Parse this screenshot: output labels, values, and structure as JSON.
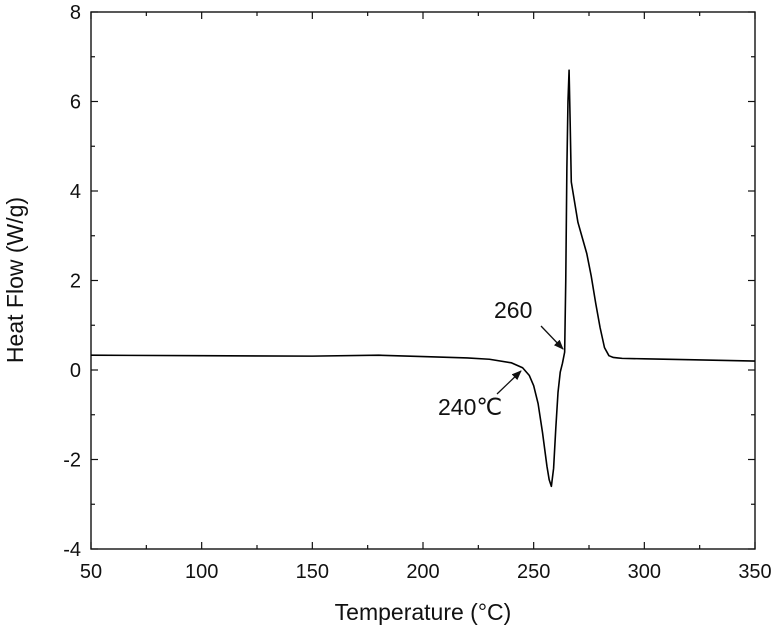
{
  "chart_data": {
    "type": "line",
    "title": "",
    "xlabel": "Temperature (°C)",
    "ylabel": "Heat Flow (W/g)",
    "xlim": [
      50,
      350
    ],
    "ylim": [
      -4,
      8
    ],
    "xticks": [
      50,
      100,
      150,
      200,
      250,
      300,
      350
    ],
    "xtick_labels": [
      "50",
      "100",
      "150",
      "200",
      "250",
      "300",
      "350"
    ],
    "yticks": [
      -4,
      -2,
      0,
      2,
      4,
      6,
      8
    ],
    "ytick_labels": [
      "-4",
      "-2",
      "0",
      "2",
      "4",
      "6",
      "8"
    ],
    "grid": false,
    "legend": "none",
    "line_color": "#000000",
    "series": [
      {
        "x": [
          50,
          100,
          150,
          180,
          200,
          220,
          230,
          240,
          245,
          248,
          250,
          252,
          254,
          256,
          257,
          258,
          259,
          260,
          261,
          262,
          263,
          264,
          264.5,
          265,
          265.5,
          266,
          266.5,
          267,
          268,
          270,
          272,
          274,
          276,
          278,
          280,
          282,
          284,
          286,
          288,
          290,
          300,
          320,
          350
        ],
        "y": [
          0.33,
          0.32,
          0.31,
          0.33,
          0.3,
          0.27,
          0.24,
          0.16,
          0.05,
          -0.12,
          -0.35,
          -0.75,
          -1.4,
          -2.15,
          -2.45,
          -2.6,
          -2.2,
          -1.3,
          -0.5,
          -0.05,
          0.15,
          0.4,
          2.0,
          4.5,
          6.0,
          6.7,
          5.5,
          4.2,
          3.9,
          3.3,
          2.95,
          2.6,
          2.1,
          1.5,
          0.95,
          0.5,
          0.32,
          0.28,
          0.27,
          0.26,
          0.25,
          0.23,
          0.2
        ]
      }
    ],
    "annotations": [
      {
        "text": "260",
        "arrow_to": [
          264.6,
          0.45
        ]
      },
      {
        "text": "240℃",
        "arrow_to": [
          246,
          0.05
        ]
      }
    ]
  }
}
